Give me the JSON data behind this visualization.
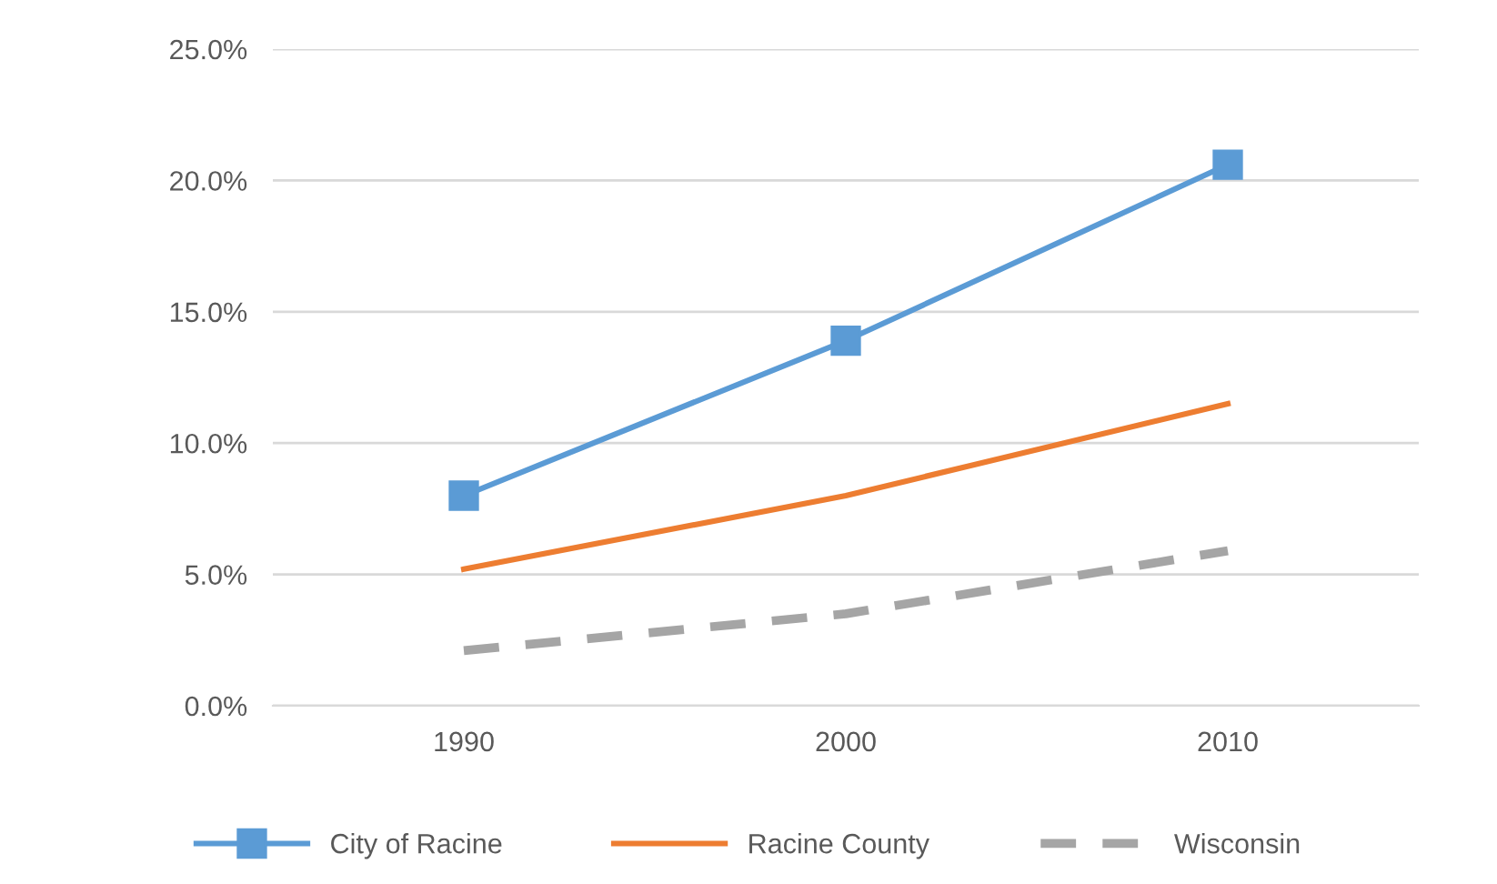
{
  "chart_data": {
    "type": "line",
    "categories": [
      "1990",
      "2000",
      "2010"
    ],
    "series": [
      {
        "name": "City of Racine",
        "color": "#5b9bd5",
        "values": [
          8.0,
          13.9,
          20.6
        ],
        "marker": "square",
        "line_style": "solid"
      },
      {
        "name": "Racine County",
        "color": "#ed7d31",
        "values": [
          5.2,
          8.0,
          11.5
        ],
        "marker": "none",
        "line_style": "solid"
      },
      {
        "name": "Wisconsin",
        "color": "#a5a5a5",
        "values": [
          2.1,
          3.5,
          5.9
        ],
        "marker": "none",
        "line_style": "dashed"
      }
    ],
    "ylim": [
      0,
      25
    ],
    "yticks": [
      {
        "value": 0,
        "label": "0.0%"
      },
      {
        "value": 5,
        "label": "5.0%"
      },
      {
        "value": 10,
        "label": "10.0%"
      },
      {
        "value": 15,
        "label": "15.0%"
      },
      {
        "value": 20,
        "label": "20.0%"
      },
      {
        "value": 25,
        "label": "25.0%"
      }
    ],
    "grid": "y",
    "legend": "bottom"
  }
}
